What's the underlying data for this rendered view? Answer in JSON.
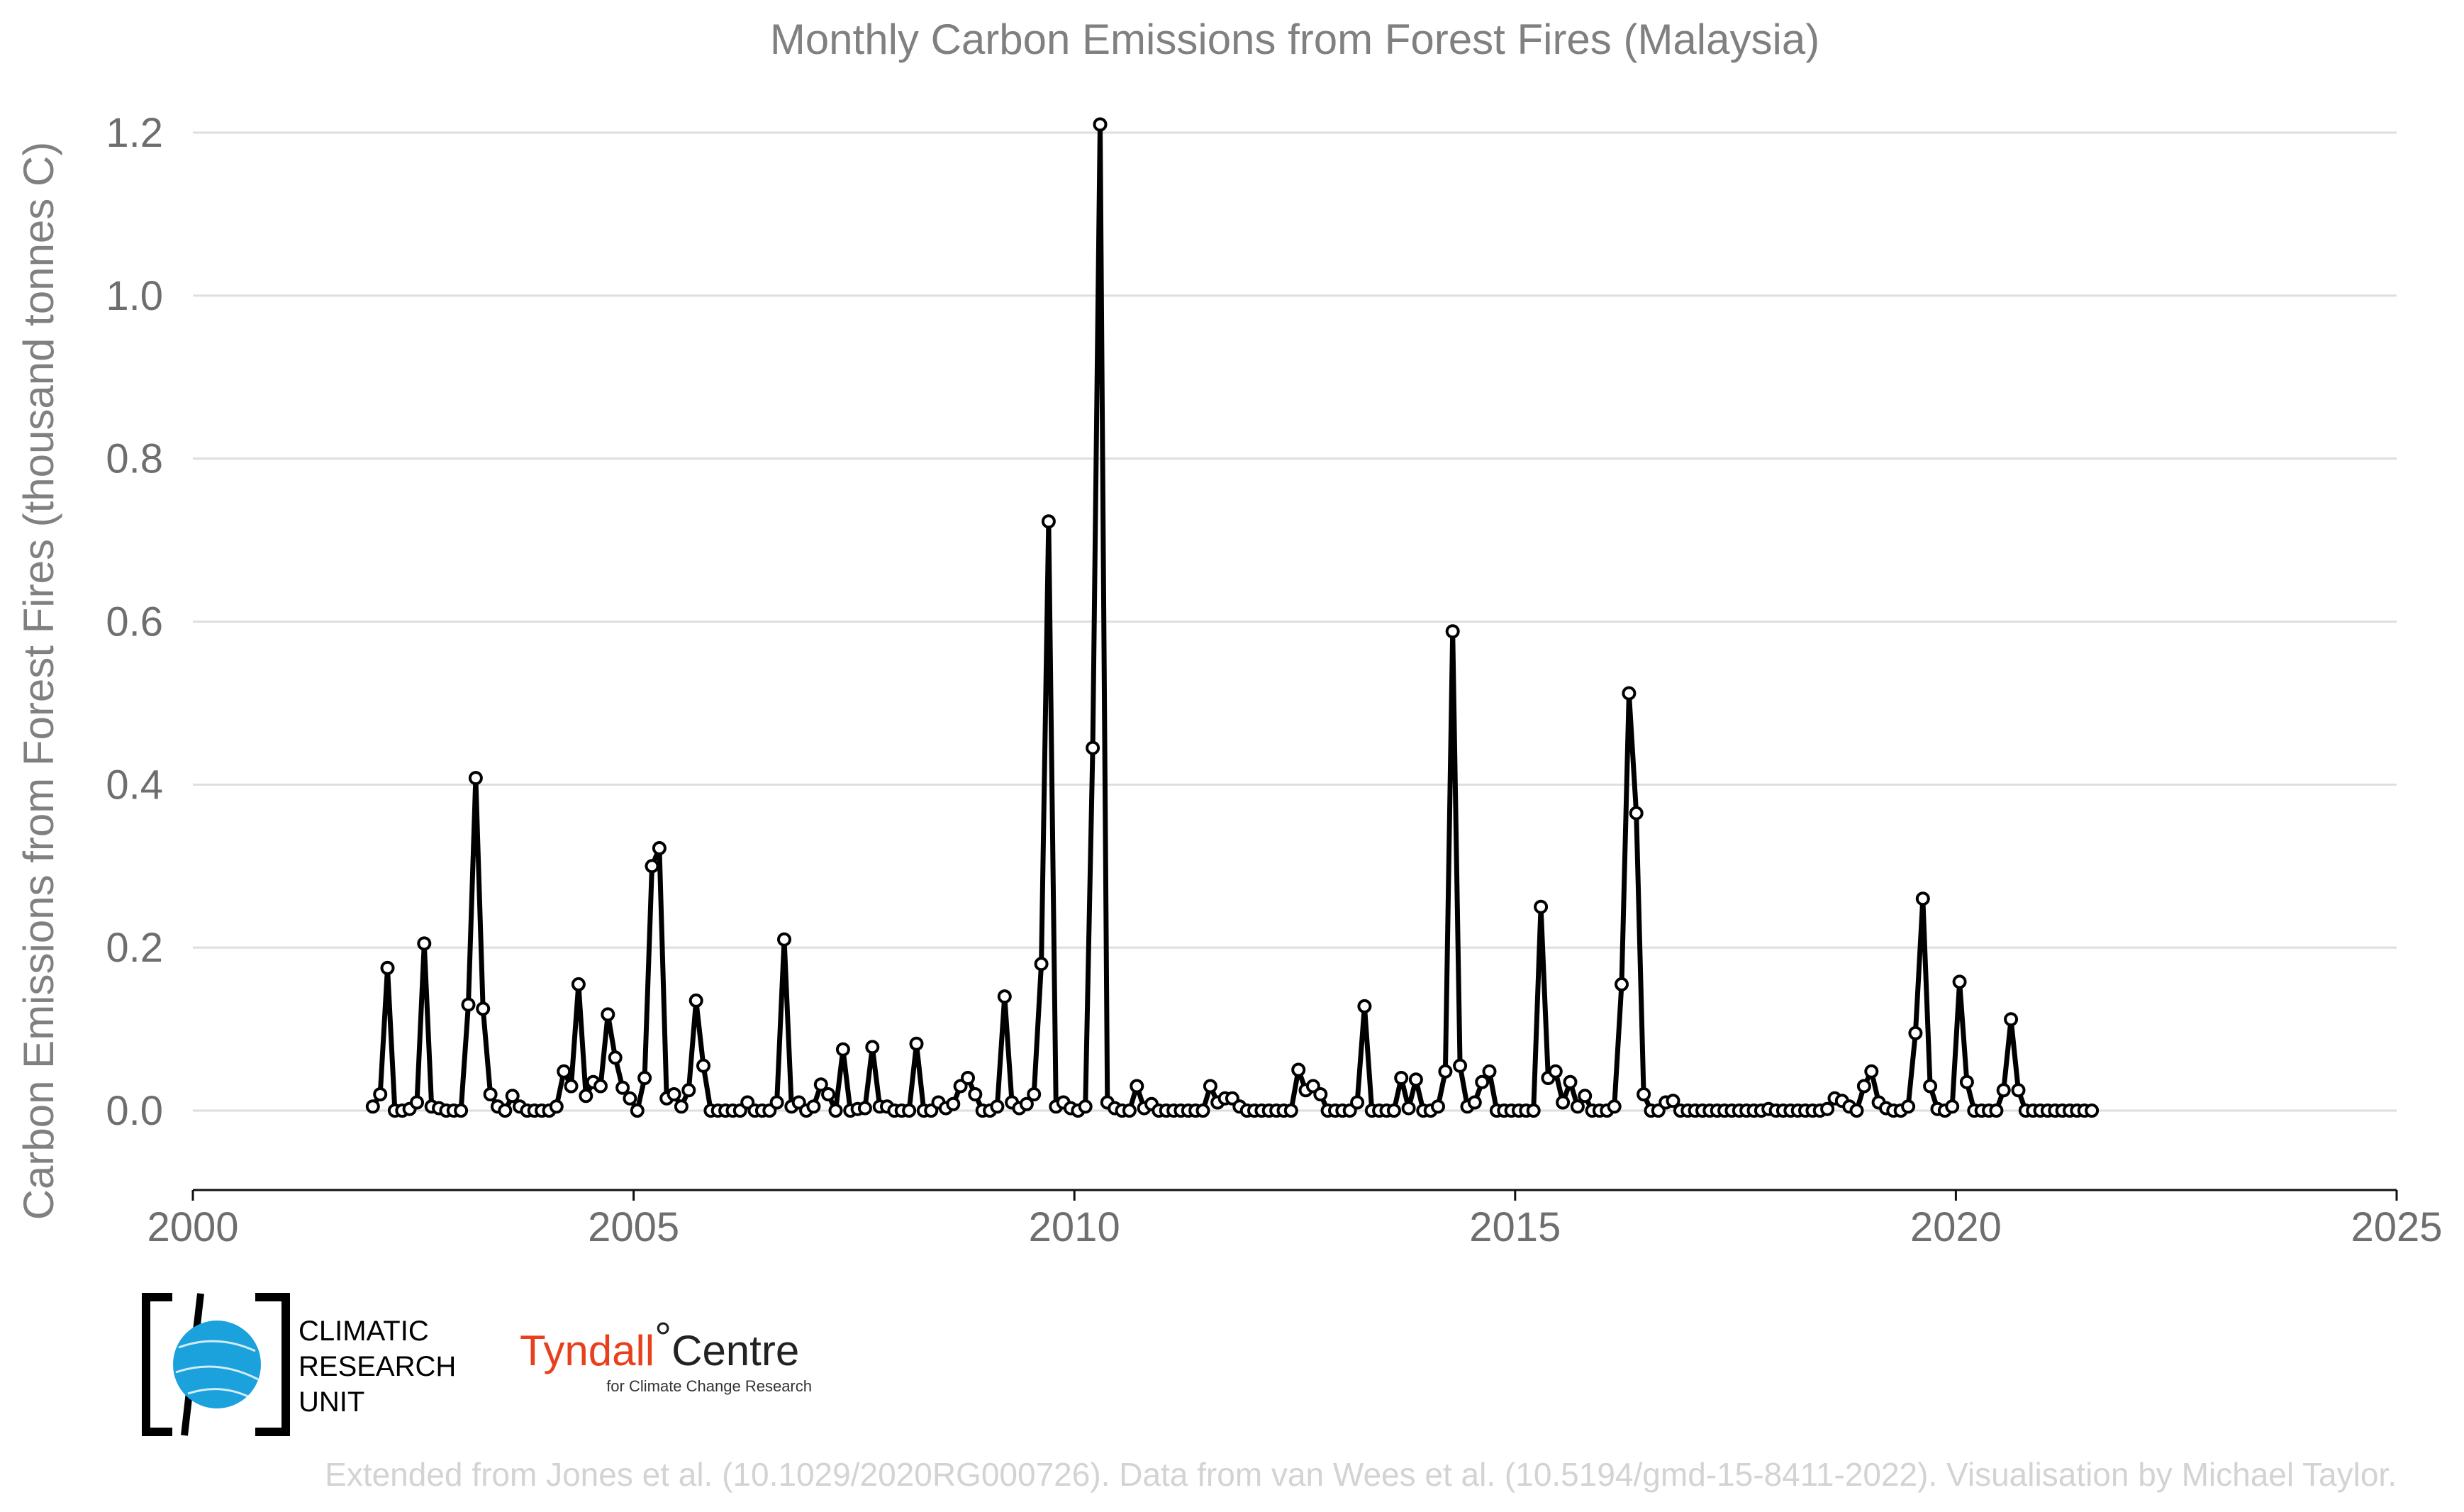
{
  "chart_data": {
    "type": "line",
    "title": "Monthly Carbon Emissions from Forest Fires (Malaysia)",
    "xlabel": "",
    "ylabel": "Carbon Emissions from Forest Fires (thousand tonnes C)",
    "xlim": [
      2000,
      2025
    ],
    "ylim": [
      -0.1,
      1.25
    ],
    "x_ticks": [
      2000,
      2005,
      2010,
      2015,
      2020,
      2025
    ],
    "y_ticks": [
      0.0,
      0.2,
      0.4,
      0.6,
      0.8,
      1.0,
      1.2
    ],
    "x_tick_labels": [
      "2000",
      "2005",
      "2010",
      "2015",
      "2020",
      "2025"
    ],
    "y_tick_labels": [
      "0.0",
      "0.2",
      "0.4",
      "0.6",
      "0.8",
      "1.0",
      "1.2"
    ],
    "grid": "horizontal",
    "marker": "open-circle",
    "line_color": "#000000",
    "x_start": "2002-01",
    "series": [
      {
        "values": [
          0.005,
          0.02,
          0.175,
          0.0,
          0.0,
          0.002,
          0.01,
          0.205,
          0.005,
          0.003,
          0.0,
          0.0,
          0.0,
          0.13,
          0.408,
          0.125,
          0.02,
          0.005,
          0.0,
          0.018,
          0.005,
          0.0,
          0.0,
          0.0,
          0.0,
          0.005,
          0.048,
          0.03,
          0.155,
          0.018,
          0.035,
          0.03,
          0.118,
          0.065,
          0.028,
          0.015,
          0.0,
          0.04,
          0.3,
          0.322,
          0.015,
          0.02,
          0.005,
          0.025,
          0.135,
          0.055,
          0.0,
          0.0,
          0.0,
          0.0,
          0.0,
          0.01,
          0.0,
          0.0,
          0.0,
          0.01,
          0.21,
          0.005,
          0.01,
          0.0,
          0.005,
          0.032,
          0.02,
          0.0,
          0.075,
          0.0,
          0.002,
          0.003,
          0.078,
          0.005,
          0.005,
          0.0,
          0.0,
          0.0,
          0.082,
          0.0,
          0.0,
          0.01,
          0.003,
          0.008,
          0.03,
          0.04,
          0.02,
          0.0,
          0.0,
          0.005,
          0.14,
          0.01,
          0.003,
          0.008,
          0.02,
          0.18,
          0.723,
          0.005,
          0.01,
          0.003,
          0.0,
          0.005,
          0.445,
          1.21,
          0.01,
          0.003,
          0.0,
          0.0,
          0.03,
          0.003,
          0.008,
          0.0,
          0.0,
          0.0,
          0.0,
          0.0,
          0.0,
          0.0,
          0.03,
          0.01,
          0.015,
          0.015,
          0.005,
          0.0,
          0.0,
          0.0,
          0.0,
          0.0,
          0.0,
          0.0,
          0.05,
          0.025,
          0.03,
          0.02,
          0.0,
          0.0,
          0.0,
          0.0,
          0.01,
          0.128,
          0.0,
          0.0,
          0.0,
          0.0,
          0.04,
          0.003,
          0.038,
          0.0,
          0.0,
          0.005,
          0.048,
          0.588,
          0.055,
          0.005,
          0.01,
          0.035,
          0.048,
          0.0,
          0.0,
          0.0,
          0.0,
          0.0,
          0.0,
          0.25,
          0.04,
          0.048,
          0.01,
          0.035,
          0.005,
          0.018,
          0.0,
          0.0,
          0.0,
          0.005,
          0.155,
          0.512,
          0.365,
          0.02,
          0.0,
          0.0,
          0.01,
          0.012,
          0.0,
          0.0,
          0.0,
          0.0,
          0.0,
          0.0,
          0.0,
          0.0,
          0.0,
          0.0,
          0.0,
          0.0,
          0.002,
          0.0,
          0.0,
          0.0,
          0.0,
          0.0,
          0.0,
          0.0,
          0.002,
          0.015,
          0.012,
          0.005,
          0.0,
          0.03,
          0.048,
          0.01,
          0.003,
          0.0,
          0.0,
          0.005,
          0.095,
          0.26,
          0.03,
          0.002,
          0.0,
          0.005,
          0.158,
          0.035,
          0.0,
          0.0,
          0.0,
          0.0,
          0.025,
          0.112,
          0.025,
          0.0,
          0.0,
          0.0,
          0.0,
          0.0,
          0.0,
          0.0,
          0.0,
          0.0,
          0.0
        ]
      }
    ]
  },
  "logos": {
    "cru_line1": "CLIMATIC",
    "cru_line2": "RESEARCH",
    "cru_line3": "UNIT",
    "tyndall_a": "Tyndall",
    "tyndall_deg": "°",
    "tyndall_b": "Centre",
    "tyndall_sub": "for Climate Change Research"
  },
  "credit": "Extended from Jones et al. (10.1029/2020RG000726). Data from van Wees et al. (10.5194/gmd-15-8411-2022). Visualisation by Michael Taylor.",
  "colors": {
    "cru_globe": "#1ba1dc",
    "tyndall_red": "#e8401c"
  }
}
